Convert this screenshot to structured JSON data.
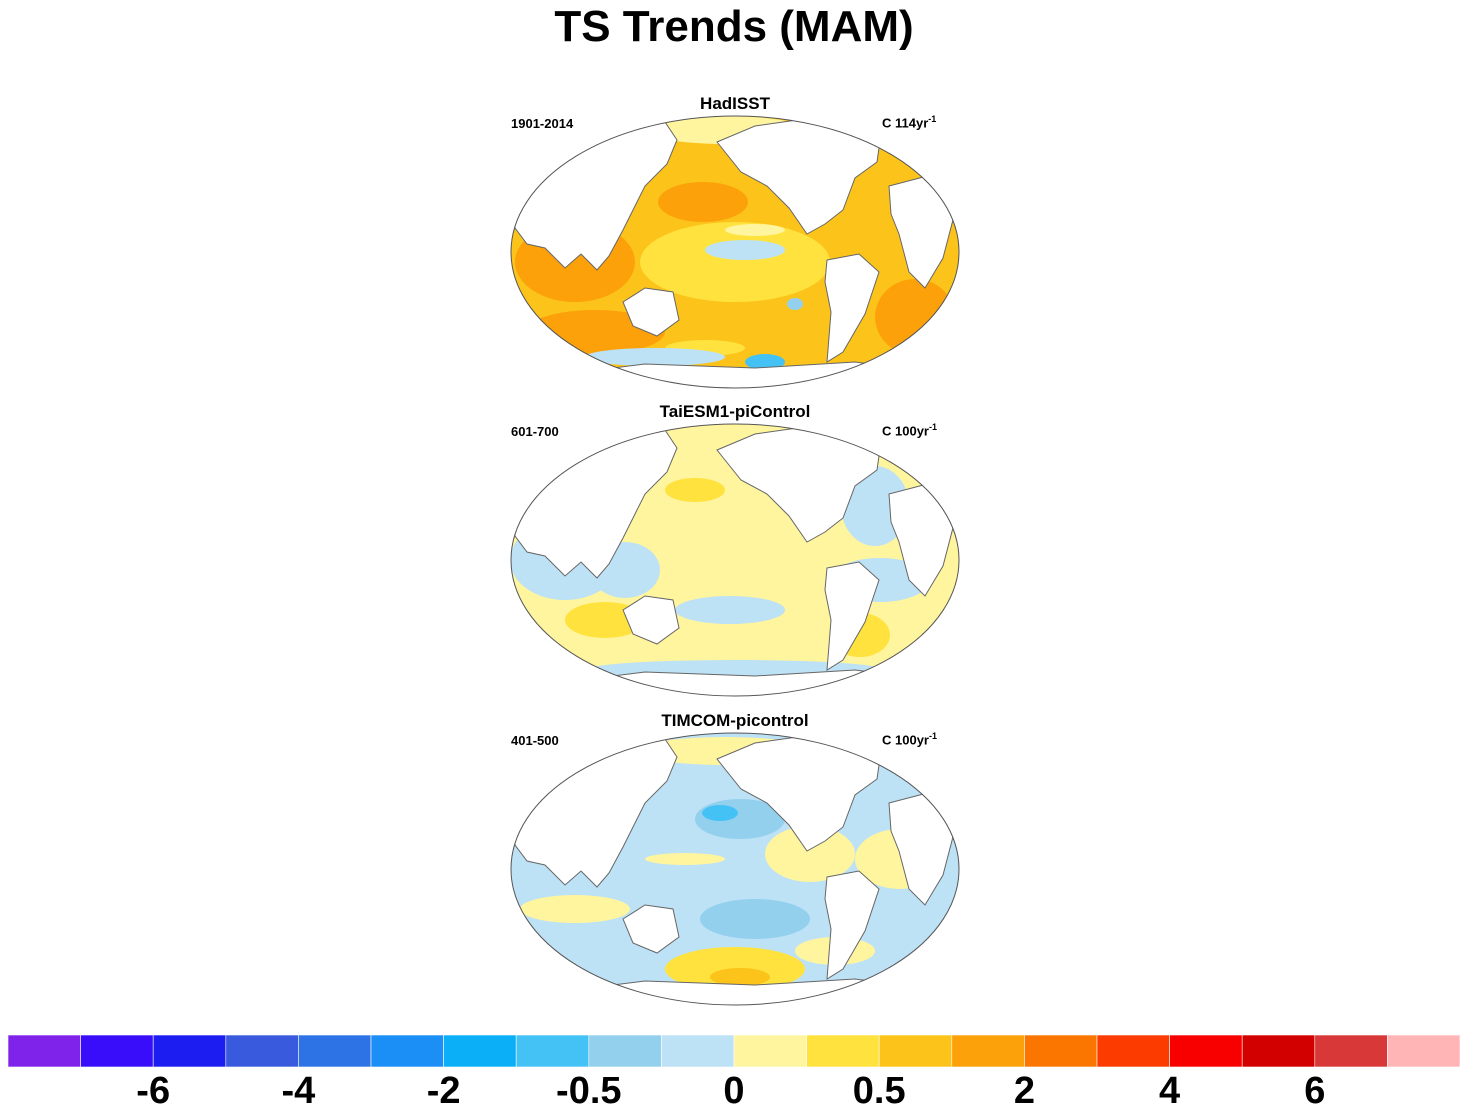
{
  "title": "TS Trends (MAM)",
  "panels": [
    {
      "name": "HadISST",
      "period": "1901-2014",
      "unit_prefix": "C 114yr",
      "unit_sup": "-1",
      "scheme": "warm"
    },
    {
      "name": "TaiESM1-piControl",
      "period": "601-700",
      "unit_prefix": "C 100yr",
      "unit_sup": "-1",
      "scheme": "mixed"
    },
    {
      "name": "TIMCOM-picontrol",
      "period": "401-500",
      "unit_prefix": "C 100yr",
      "unit_sup": "-1",
      "scheme": "cool"
    }
  ],
  "colorbar": {
    "colors": [
      "#7f22ea",
      "#3a0dfa",
      "#1c1df0",
      "#3a5add",
      "#2e73e6",
      "#1b8ff6",
      "#0aaff7",
      "#45c2f5",
      "#93d0ee",
      "#bde1f5",
      "#fff59e",
      "#ffe23e",
      "#fcc41a",
      "#fca10a",
      "#fa7600",
      "#fb3b00",
      "#f90000",
      "#d30000",
      "#d83838",
      "#ffb5b5"
    ],
    "labels": [
      {
        "text": "-6",
        "boundary": 2
      },
      {
        "text": "-4",
        "boundary": 4
      },
      {
        "text": "-2",
        "boundary": 6
      },
      {
        "text": "-0.5",
        "boundary": 8
      },
      {
        "text": "0",
        "boundary": 10
      },
      {
        "text": "0.5",
        "boundary": 12
      },
      {
        "text": "2",
        "boundary": 14
      },
      {
        "text": "4",
        "boundary": 16
      },
      {
        "text": "6",
        "boundary": 18
      }
    ]
  }
}
